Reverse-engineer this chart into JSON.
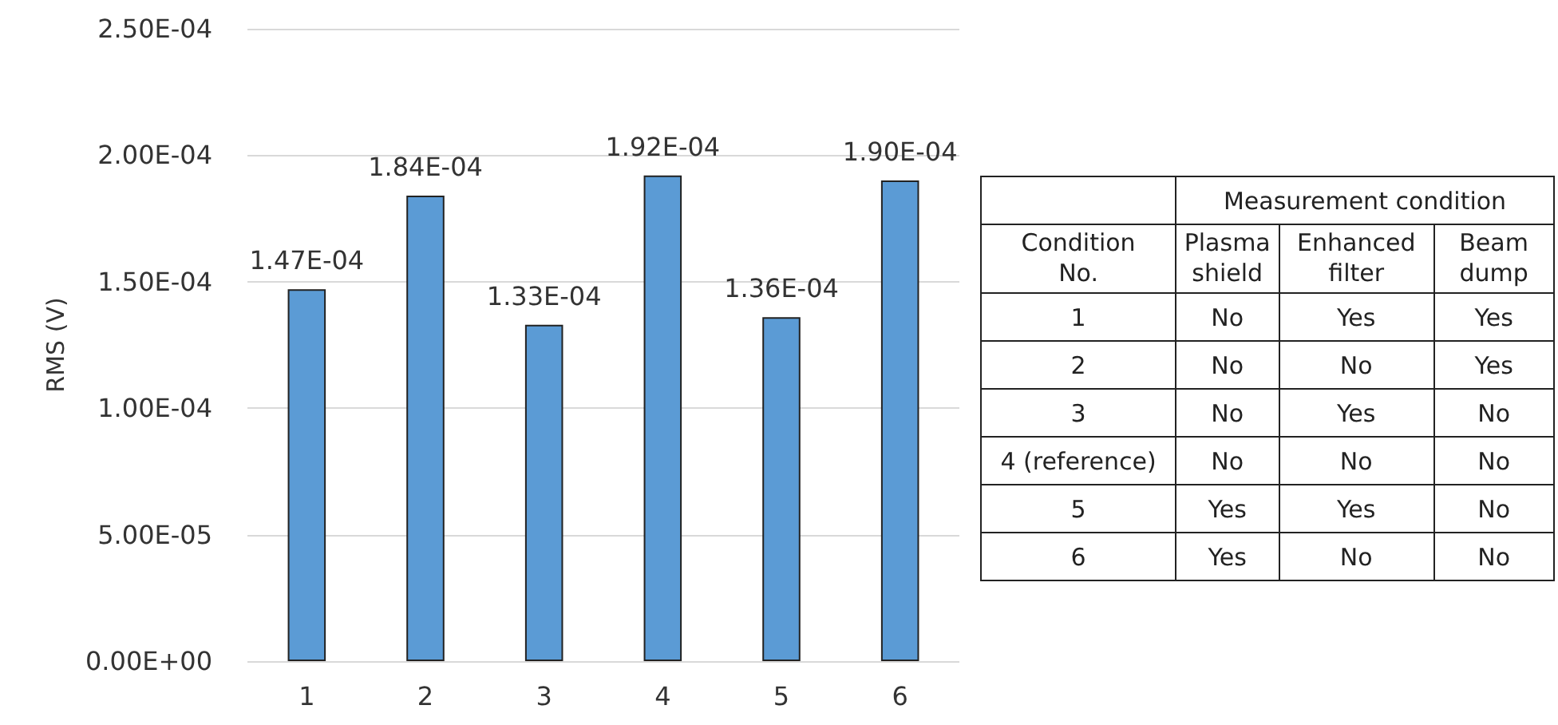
{
  "chart_data": [
    {
      "type": "bar",
      "ylabel": "RMS (V)",
      "categories": [
        "1",
        "2",
        "3",
        "4",
        "5",
        "6"
      ],
      "values": [
        0.000147,
        0.000184,
        0.000133,
        0.000192,
        0.000136,
        0.00019
      ],
      "value_labels": [
        "1.47E-04",
        "1.84E-04",
        "1.33E-04",
        "1.92E-04",
        "1.36E-04",
        "1.90E-04"
      ],
      "color": "#5b9bd5",
      "ylim": [
        0,
        0.00025
      ],
      "yticks": [
        {
          "value": 0,
          "label": "0.00E+00"
        },
        {
          "value": 5e-05,
          "label": "5.00E-05"
        },
        {
          "value": 0.0001,
          "label": "1.00E-04"
        },
        {
          "value": 0.00015,
          "label": "1.50E-04"
        },
        {
          "value": 0.0002,
          "label": "2.00E-04"
        },
        {
          "value": 0.00025,
          "label": "2.50E-04"
        }
      ],
      "grid": "y"
    },
    {
      "type": "other",
      "title": "Measurement condition",
      "categories": [
        "Condition No.",
        "Plasma shield",
        "Enhanced filter",
        "Beam dump"
      ],
      "cell_labels": [
        [
          "1",
          "No",
          "Yes",
          "Yes"
        ],
        [
          "2",
          "No",
          "No",
          "Yes"
        ],
        [
          "3",
          "No",
          "Yes",
          "No"
        ],
        [
          "4 (reference)",
          "No",
          "No",
          "No"
        ],
        [
          "5",
          "Yes",
          "Yes",
          "No"
        ],
        [
          "6",
          "Yes",
          "No",
          "No"
        ]
      ]
    }
  ]
}
